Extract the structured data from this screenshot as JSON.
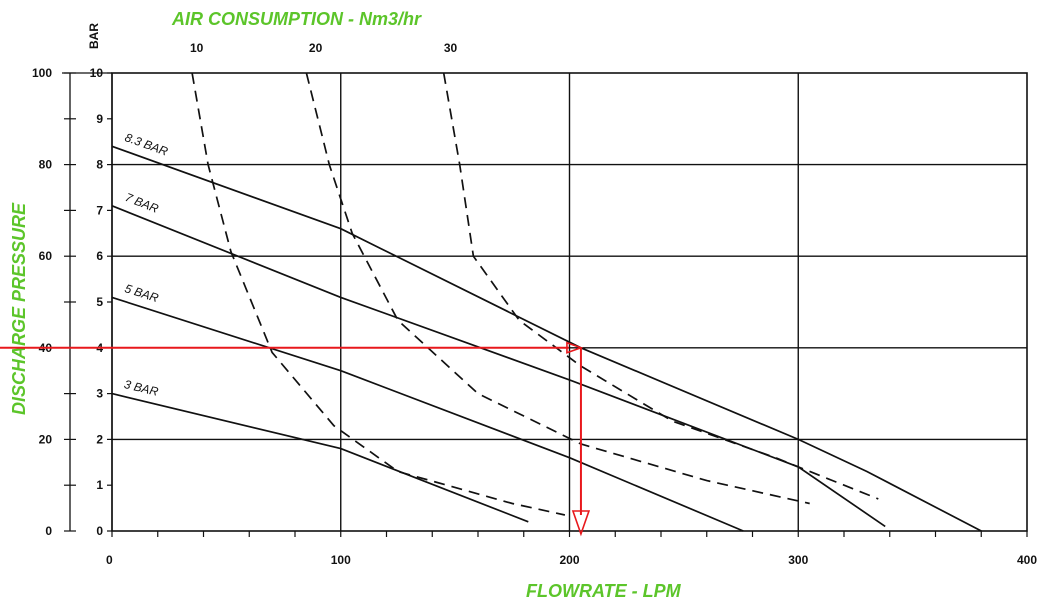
{
  "chart_data": {
    "type": "line",
    "title": "AIR CONSUMPTION - Nm3/hr",
    "xlabel": "FLOWRATE - LPM",
    "ylabel": "DISCHARGE PRESSURE",
    "secondary_ylabel": "BAR",
    "xlim": [
      0,
      400
    ],
    "ylim": [
      0,
      100
    ],
    "secondary_ylim": [
      0,
      10
    ],
    "x_ticks": [
      0,
      100,
      200,
      300,
      400
    ],
    "y_ticks": [
      0,
      20,
      40,
      60,
      80,
      100
    ],
    "secondary_y_ticks": [
      0,
      1,
      2,
      3,
      4,
      5,
      6,
      7,
      8,
      9,
      10
    ],
    "top_ticks": [
      {
        "label": "10",
        "x": 37
      },
      {
        "label": "20",
        "x": 89
      },
      {
        "label": "30",
        "x": 148
      }
    ],
    "grid": true,
    "colors": {
      "title_green": "#5cc52a",
      "curve": "#111111",
      "example": "#e8181c"
    },
    "series": [
      {
        "name": "8.3 BAR",
        "style": "solid",
        "points": [
          [
            0,
            8.4
          ],
          [
            100,
            6.6
          ],
          [
            205,
            4.0
          ],
          [
            300,
            2.0
          ],
          [
            330,
            1.3
          ],
          [
            380,
            0.0
          ]
        ]
      },
      {
        "name": "7 BAR",
        "style": "solid",
        "points": [
          [
            0,
            7.1
          ],
          [
            100,
            5.1
          ],
          [
            200,
            3.3
          ],
          [
            300,
            1.4
          ],
          [
            338,
            0.1
          ]
        ]
      },
      {
        "name": "5 BAR",
        "style": "solid",
        "points": [
          [
            0,
            5.1
          ],
          [
            100,
            3.5
          ],
          [
            200,
            1.6
          ],
          [
            276,
            0.0
          ]
        ]
      },
      {
        "name": "3 BAR",
        "style": "solid",
        "points": [
          [
            0,
            3.0
          ],
          [
            100,
            1.8
          ],
          [
            182,
            0.2
          ]
        ]
      },
      {
        "name": "",
        "style": "dashed",
        "points": [
          [
            35,
            10
          ],
          [
            42,
            8.0
          ],
          [
            52,
            6.1
          ],
          [
            70,
            3.9
          ],
          [
            97,
            2.3
          ],
          [
            125,
            1.3
          ],
          [
            175,
            0.6
          ],
          [
            198,
            0.35
          ]
        ]
      },
      {
        "name": "",
        "style": "dashed",
        "points": [
          [
            85,
            10
          ],
          [
            95,
            8.0
          ],
          [
            105,
            6.5
          ],
          [
            125,
            4.6
          ],
          [
            160,
            3.0
          ],
          [
            205,
            1.9
          ],
          [
            260,
            1.1
          ],
          [
            305,
            0.6
          ]
        ]
      },
      {
        "name": "",
        "style": "dashed",
        "points": [
          [
            145,
            10
          ],
          [
            152,
            8.0
          ],
          [
            158,
            6.0
          ],
          [
            178,
            4.6
          ],
          [
            205,
            3.6
          ],
          [
            245,
            2.4
          ],
          [
            290,
            1.6
          ],
          [
            335,
            0.7
          ]
        ]
      }
    ],
    "example_path": {
      "pressure": 40,
      "flowrate": 205
    },
    "annotations": [
      "8.3 BAR",
      "7 BAR",
      "5 BAR",
      "3 BAR"
    ]
  }
}
